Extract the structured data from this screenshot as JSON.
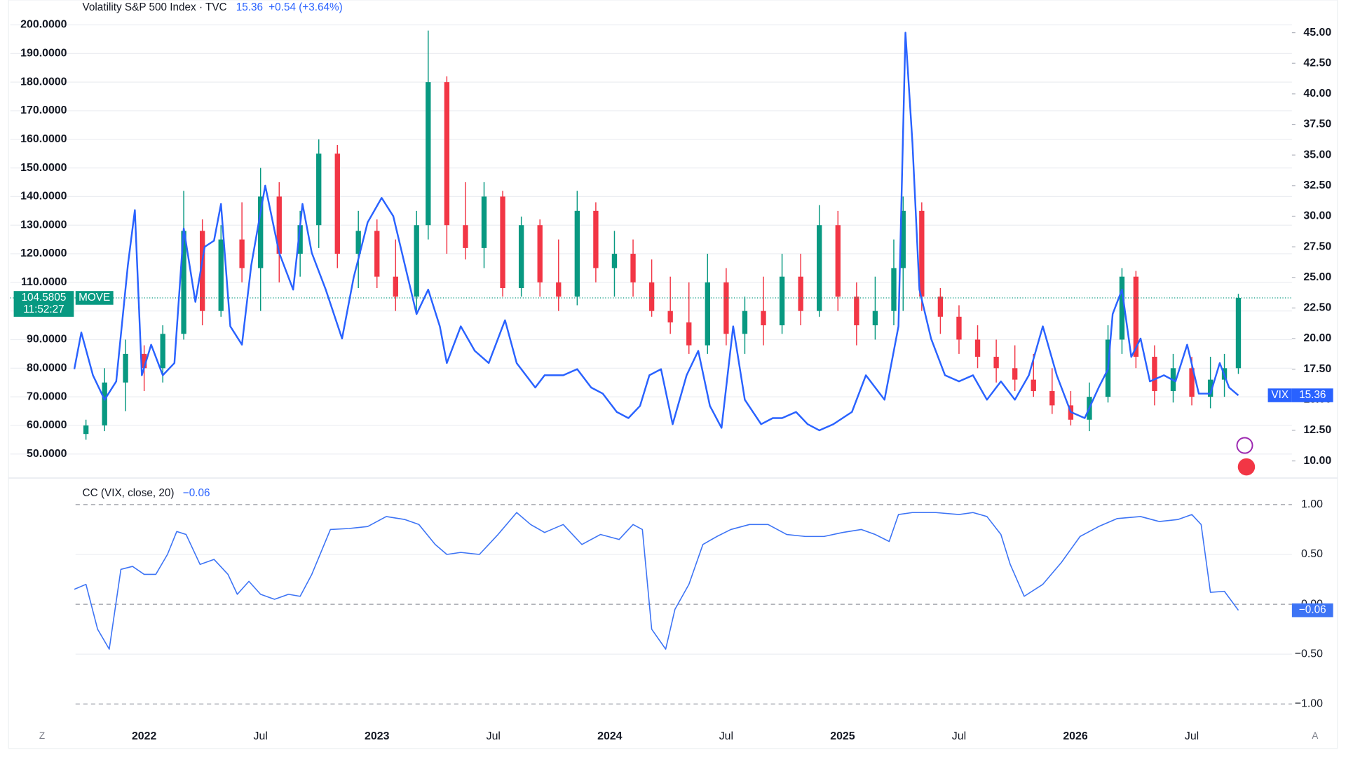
{
  "header": {
    "title": "Volatility S&P 500 Index · TVC",
    "price": "15.36",
    "change": "+0.54 (+3.64%)"
  },
  "footer": {
    "left": "Z",
    "right": "A"
  },
  "chart_data": [
    {
      "type": "candlestick",
      "name": "MOVE",
      "countdown": "11:52:27",
      "up_color": "#089981",
      "down_color": "#f23645",
      "x": [
        2021.75,
        2021.83,
        2021.92,
        2022.0,
        2022.08,
        2022.17,
        2022.25,
        2022.33,
        2022.42,
        2022.5,
        2022.58,
        2022.67,
        2022.75,
        2022.83,
        2022.92,
        2023.0,
        2023.08,
        2023.17,
        2023.22,
        2023.3,
        2023.38,
        2023.46,
        2023.54,
        2023.62,
        2023.7,
        2023.78,
        2023.86,
        2023.94,
        2024.02,
        2024.1,
        2024.18,
        2024.26,
        2024.34,
        2024.42,
        2024.5,
        2024.58,
        2024.66,
        2024.74,
        2024.82,
        2024.9,
        2024.98,
        2025.06,
        2025.14,
        2025.22,
        2025.26,
        2025.34,
        2025.42,
        2025.5,
        2025.58,
        2025.66,
        2025.74,
        2025.82,
        2025.9,
        2025.98,
        2026.06,
        2026.14,
        2026.2,
        2026.26,
        2026.34,
        2026.42,
        2026.5,
        2026.58,
        2026.64,
        2026.7
      ],
      "open": [
        57,
        60,
        75,
        85,
        80,
        92,
        128,
        100,
        125,
        115,
        140,
        120,
        130,
        155,
        120,
        128,
        112,
        105,
        130,
        180,
        130,
        122,
        140,
        108,
        130,
        110,
        105,
        135,
        115,
        120,
        110,
        100,
        96,
        88,
        110,
        92,
        100,
        95,
        112,
        100,
        130,
        105,
        95,
        100,
        115,
        135,
        105,
        98,
        90,
        84,
        80,
        76,
        72,
        67,
        62,
        70,
        90,
        112,
        84,
        72,
        80,
        70,
        76,
        80
      ],
      "high": [
        62,
        80,
        90,
        88,
        95,
        142,
        132,
        130,
        138,
        150,
        145,
        135,
        160,
        158,
        135,
        132,
        125,
        135,
        198,
        182,
        145,
        145,
        142,
        133,
        132,
        125,
        142,
        138,
        128,
        125,
        118,
        112,
        110,
        120,
        115,
        105,
        112,
        120,
        120,
        137,
        135,
        110,
        112,
        125,
        140,
        138,
        108,
        102,
        95,
        90,
        88,
        85,
        80,
        72,
        75,
        95,
        115,
        114,
        88,
        85,
        84,
        84,
        85,
        106
      ],
      "low": [
        55,
        58,
        65,
        72,
        75,
        90,
        95,
        98,
        110,
        100,
        110,
        112,
        122,
        115,
        108,
        108,
        100,
        100,
        125,
        120,
        118,
        115,
        105,
        105,
        105,
        100,
        102,
        110,
        105,
        105,
        98,
        92,
        85,
        85,
        88,
        85,
        88,
        92,
        95,
        98,
        100,
        88,
        90,
        95,
        100,
        100,
        92,
        85,
        80,
        75,
        72,
        70,
        64,
        60,
        58,
        68,
        85,
        80,
        67,
        68,
        67,
        66,
        70,
        78
      ],
      "close": [
        60,
        75,
        85,
        80,
        92,
        128,
        100,
        125,
        115,
        140,
        120,
        130,
        155,
        120,
        128,
        112,
        105,
        130,
        180,
        130,
        122,
        140,
        108,
        130,
        110,
        105,
        135,
        115,
        120,
        110,
        100,
        96,
        88,
        110,
        92,
        100,
        95,
        112,
        100,
        130,
        105,
        95,
        100,
        115,
        135,
        105,
        98,
        90,
        84,
        80,
        76,
        72,
        67,
        62,
        70,
        90,
        112,
        84,
        72,
        80,
        70,
        76,
        80,
        104.5805
      ],
      "ylim": [
        42.2,
        208.7
      ],
      "yticks": [
        {
          "value": 50,
          "label": "50.0000"
        },
        {
          "value": 60,
          "label": "60.0000"
        },
        {
          "value": 70,
          "label": "70.0000"
        },
        {
          "value": 80,
          "label": "80.0000"
        },
        {
          "value": 90,
          "label": "90.0000"
        },
        {
          "value": 100,
          "label": "100.0000"
        },
        {
          "value": 110,
          "label": "110.0000"
        },
        {
          "value": 120,
          "label": "120.0000"
        },
        {
          "value": 130,
          "label": "130.0000"
        },
        {
          "value": 140,
          "label": "140.0000"
        },
        {
          "value": 150,
          "label": "150.0000"
        },
        {
          "value": 160,
          "label": "160.0000"
        },
        {
          "value": 170,
          "label": "170.0000"
        },
        {
          "value": 180,
          "label": "180.0000"
        },
        {
          "value": 190,
          "label": "190.0000"
        },
        {
          "value": 200,
          "label": "200.0000"
        }
      ],
      "grid": true
    },
    {
      "type": "line",
      "name": "VIX",
      "color": "#2962ff",
      "x": [
        2021.7,
        2021.73,
        2021.78,
        2021.83,
        2021.88,
        2021.93,
        2021.96,
        2021.99,
        2022.03,
        2022.08,
        2022.13,
        2022.17,
        2022.22,
        2022.26,
        2022.3,
        2022.33,
        2022.37,
        2022.42,
        2022.46,
        2022.52,
        2022.58,
        2022.64,
        2022.68,
        2022.72,
        2022.78,
        2022.85,
        2022.9,
        2022.96,
        2023.02,
        2023.07,
        2023.12,
        2023.17,
        2023.22,
        2023.27,
        2023.3,
        2023.36,
        2023.42,
        2023.48,
        2023.55,
        2023.6,
        2023.68,
        2023.72,
        2023.8,
        2023.86,
        2023.92,
        2023.97,
        2024.03,
        2024.08,
        2024.13,
        2024.17,
        2024.22,
        2024.27,
        2024.33,
        2024.38,
        2024.43,
        2024.48,
        2024.53,
        2024.58,
        2024.65,
        2024.7,
        2024.74,
        2024.8,
        2024.85,
        2024.9,
        2024.96,
        2025.04,
        2025.1,
        2025.18,
        2025.24,
        2025.27,
        2025.3,
        2025.33,
        2025.38,
        2025.44,
        2025.5,
        2025.56,
        2025.62,
        2025.68,
        2025.74,
        2025.8,
        2025.86,
        2025.92,
        2025.98,
        2026.04,
        2026.1,
        2026.14,
        2026.16,
        2026.2,
        2026.24,
        2026.28,
        2026.32,
        2026.38,
        2026.43,
        2026.48,
        2026.53,
        2026.58,
        2026.62,
        2026.66,
        2026.7
      ],
      "values": [
        17.5,
        20.5,
        17,
        15,
        16.5,
        26,
        30.5,
        17,
        19.5,
        17,
        18,
        29,
        23,
        27.5,
        28,
        31,
        21,
        19.5,
        26,
        32.5,
        27,
        24,
        31,
        27,
        24,
        20,
        25,
        29.5,
        31.5,
        30,
        26,
        22,
        24,
        21,
        18,
        21,
        19,
        18,
        21.5,
        18,
        16,
        17,
        17,
        17.5,
        16,
        15.5,
        14,
        13.5,
        14.5,
        17,
        17.5,
        13,
        17,
        19,
        14.5,
        12.7,
        21,
        15,
        13,
        13.5,
        13.5,
        14,
        13,
        12.5,
        13,
        14,
        17,
        15,
        21,
        45,
        36,
        24,
        20,
        17,
        16.5,
        17,
        15,
        16.5,
        15,
        17,
        21,
        17,
        14,
        13.5,
        16,
        17.5,
        22,
        24,
        18.5,
        20,
        16.5,
        17,
        16.5,
        19.5,
        15.5,
        15.5,
        18,
        16,
        15.36
      ],
      "y2lim": [
        8.74,
        47.67
      ],
      "y2ticks": [
        {
          "value": 10,
          "label": "10.00"
        },
        {
          "value": 12.5,
          "label": "12.50"
        },
        {
          "value": 15,
          "label": "15.00"
        },
        {
          "value": 17.5,
          "label": "17.50"
        },
        {
          "value": 20,
          "label": "20.00"
        },
        {
          "value": 22.5,
          "label": "22.50"
        },
        {
          "value": 25,
          "label": "25.00"
        },
        {
          "value": 27.5,
          "label": "27.50"
        },
        {
          "value": 30,
          "label": "30.00"
        },
        {
          "value": 32.5,
          "label": "32.50"
        },
        {
          "value": 35,
          "label": "35.00"
        },
        {
          "value": 37.5,
          "label": "37.50"
        },
        {
          "value": 40,
          "label": "40.00"
        },
        {
          "value": 42.5,
          "label": "42.50"
        },
        {
          "value": 45,
          "label": "45.00"
        }
      ]
    },
    {
      "type": "line",
      "title": "CC (VIX, close, 20)",
      "color": "#3d74f5",
      "last_value_label": "−0.06",
      "x": [
        2021.7,
        2021.75,
        2021.8,
        2021.85,
        2021.9,
        2021.95,
        2022.0,
        2022.05,
        2022.1,
        2022.14,
        2022.18,
        2022.24,
        2022.3,
        2022.36,
        2022.4,
        2022.45,
        2022.5,
        2022.56,
        2022.62,
        2022.67,
        2022.72,
        2022.8,
        2022.88,
        2022.96,
        2023.04,
        2023.12,
        2023.18,
        2023.25,
        2023.3,
        2023.36,
        2023.44,
        2023.52,
        2023.6,
        2023.66,
        2023.72,
        2023.8,
        2023.88,
        2023.96,
        2024.04,
        2024.1,
        2024.14,
        2024.18,
        2024.24,
        2024.28,
        2024.34,
        2024.4,
        2024.46,
        2024.52,
        2024.6,
        2024.68,
        2024.76,
        2024.84,
        2024.92,
        2025.0,
        2025.08,
        2025.14,
        2025.2,
        2025.24,
        2025.3,
        2025.4,
        2025.5,
        2025.56,
        2025.62,
        2025.68,
        2025.72,
        2025.78,
        2025.86,
        2025.94,
        2026.02,
        2026.1,
        2026.18,
        2026.28,
        2026.36,
        2026.44,
        2026.5,
        2026.54,
        2026.58,
        2026.64,
        2026.7
      ],
      "values": [
        0.15,
        0.2,
        -0.25,
        -0.45,
        0.35,
        0.38,
        0.3,
        0.3,
        0.5,
        0.73,
        0.7,
        0.4,
        0.45,
        0.3,
        0.1,
        0.23,
        0.1,
        0.05,
        0.1,
        0.08,
        0.3,
        0.75,
        0.76,
        0.78,
        0.88,
        0.85,
        0.8,
        0.6,
        0.5,
        0.52,
        0.5,
        0.7,
        0.92,
        0.8,
        0.72,
        0.8,
        0.6,
        0.7,
        0.65,
        0.8,
        0.75,
        -0.25,
        -0.45,
        -0.05,
        0.2,
        0.6,
        0.68,
        0.75,
        0.8,
        0.8,
        0.7,
        0.68,
        0.68,
        0.72,
        0.75,
        0.7,
        0.63,
        0.9,
        0.92,
        0.92,
        0.9,
        0.92,
        0.88,
        0.7,
        0.4,
        0.08,
        0.2,
        0.42,
        0.68,
        0.78,
        0.86,
        0.88,
        0.83,
        0.85,
        0.9,
        0.8,
        0.12,
        0.13,
        -0.06
      ],
      "ylim": [
        -1.17,
        1.24
      ],
      "yticks": [
        {
          "value": 1,
          "label": "1.00"
        },
        {
          "value": 0.5,
          "label": "0.50"
        },
        {
          "value": 0,
          "label": "0.00"
        },
        {
          "value": -0.5,
          "label": "−0.50"
        },
        {
          "value": -1,
          "label": "−1.00"
        }
      ],
      "xlim": [
        2021.425,
        2026.93
      ],
      "xticks": [
        2022,
        {
          "value": 2022.5,
          "label": "Jul"
        },
        2023,
        {
          "value": 2023.5,
          "label": "Jul"
        },
        2024,
        {
          "value": 2024.5,
          "label": "Jul"
        },
        2025,
        {
          "value": 2025.5,
          "label": "Jul"
        },
        2026,
        {
          "value": 2026.5,
          "label": "Jul"
        }
      ]
    }
  ]
}
